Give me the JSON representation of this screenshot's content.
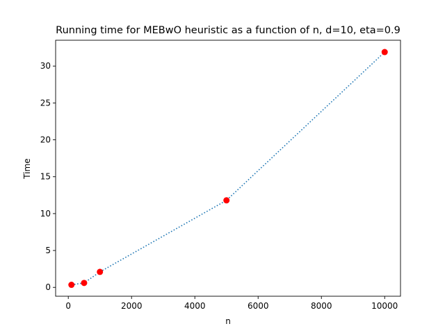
{
  "chart_data": {
    "type": "line",
    "title": "Running time for MEBwO heuristic as a function of n, d=10, eta=0.9",
    "xlabel": "n",
    "ylabel": "Time",
    "xlim": [
      -400,
      10500
    ],
    "ylim": [
      -1.2,
      33.5
    ],
    "xticks": [
      0,
      2000,
      4000,
      6000,
      8000,
      10000
    ],
    "yticks": [
      0,
      5,
      10,
      15,
      20,
      25,
      30
    ],
    "grid": false,
    "series": [
      {
        "name": "Time",
        "x": [
          100,
          500,
          1000,
          5000,
          10000
        ],
        "y": [
          0.35,
          0.6,
          2.1,
          11.8,
          31.9
        ],
        "line_color": "#1f77b4",
        "line_style": "dotted",
        "marker_color": "#ff0000"
      }
    ]
  }
}
